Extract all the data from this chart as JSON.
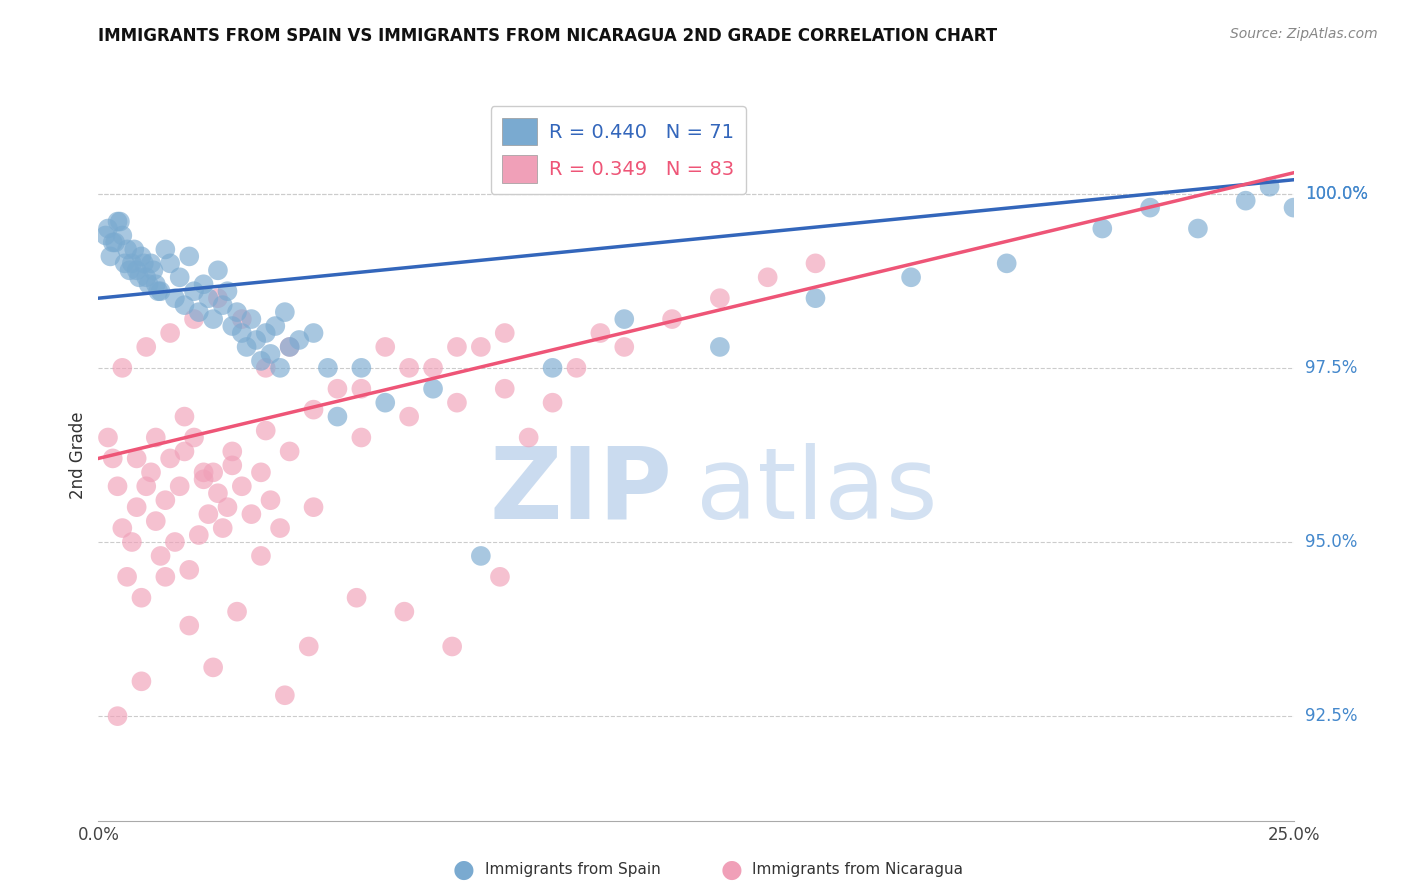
{
  "title": "IMMIGRANTS FROM SPAIN VS IMMIGRANTS FROM NICARAGUA 2ND GRADE CORRELATION CHART",
  "source_text": "Source: ZipAtlas.com",
  "ylabel": "2nd Grade",
  "xlim": [
    0.0,
    25.0
  ],
  "ylim": [
    91.0,
    101.5
  ],
  "x_tick_vals": [
    0,
    5,
    10,
    15,
    20,
    25
  ],
  "x_tick_labels": [
    "0.0%",
    "",
    "",
    "",
    "",
    "25.0%"
  ],
  "y_tick_vals": [
    92.5,
    95.0,
    97.5,
    100.0
  ],
  "y_tick_labels": [
    "92.5%",
    "95.0%",
    "97.5%",
    "100.0%"
  ],
  "r_spain": 0.44,
  "n_spain": 71,
  "r_nicaragua": 0.349,
  "n_nicaragua": 83,
  "spain_color": "#7AAAD0",
  "nicaragua_color": "#F0A0B8",
  "spain_line_color": "#3366BB",
  "nicaragua_line_color": "#EE5577",
  "watermark_zip": "ZIP",
  "watermark_atlas": "atlas",
  "watermark_color": "#C8DCF0",
  "watermark_atlas_color": "#B8C8D8",
  "spain_trend_x0": 0.0,
  "spain_trend_y0": 98.5,
  "spain_trend_x1": 25.0,
  "spain_trend_y1": 100.2,
  "nic_trend_x0": 0.0,
  "nic_trend_y0": 96.2,
  "nic_trend_x1": 25.0,
  "nic_trend_y1": 100.3,
  "spain_x": [
    0.2,
    0.3,
    0.4,
    0.5,
    0.6,
    0.7,
    0.8,
    0.9,
    1.0,
    1.1,
    1.2,
    1.3,
    1.4,
    1.5,
    1.6,
    1.7,
    1.8,
    1.9,
    2.0,
    2.1,
    2.2,
    2.3,
    2.4,
    2.5,
    2.6,
    2.7,
    2.8,
    2.9,
    3.0,
    3.1,
    3.2,
    3.3,
    3.4,
    3.5,
    3.6,
    3.7,
    3.8,
    3.9,
    4.0,
    4.2,
    4.5,
    4.8,
    5.0,
    5.5,
    6.0,
    7.0,
    8.0,
    9.5,
    11.0,
    13.0,
    15.0,
    17.0,
    19.0,
    21.0,
    22.0,
    23.0,
    24.0,
    24.5,
    25.0,
    0.15,
    0.25,
    0.35,
    0.45,
    0.55,
    0.65,
    0.75,
    0.85,
    0.95,
    1.05,
    1.15,
    1.25
  ],
  "spain_y": [
    99.5,
    99.3,
    99.6,
    99.4,
    99.2,
    99.0,
    98.9,
    99.1,
    98.8,
    99.0,
    98.7,
    98.6,
    99.2,
    99.0,
    98.5,
    98.8,
    98.4,
    99.1,
    98.6,
    98.3,
    98.7,
    98.5,
    98.2,
    98.9,
    98.4,
    98.6,
    98.1,
    98.3,
    98.0,
    97.8,
    98.2,
    97.9,
    97.6,
    98.0,
    97.7,
    98.1,
    97.5,
    98.3,
    97.8,
    97.9,
    98.0,
    97.5,
    96.8,
    97.5,
    97.0,
    97.2,
    94.8,
    97.5,
    98.2,
    97.8,
    98.5,
    98.8,
    99.0,
    99.5,
    99.8,
    99.5,
    99.9,
    100.1,
    99.8,
    99.4,
    99.1,
    99.3,
    99.6,
    99.0,
    98.9,
    99.2,
    98.8,
    99.0,
    98.7,
    98.9,
    98.6
  ],
  "nic_x": [
    0.2,
    0.3,
    0.4,
    0.5,
    0.6,
    0.7,
    0.8,
    0.9,
    1.0,
    1.1,
    1.2,
    1.3,
    1.4,
    1.5,
    1.6,
    1.7,
    1.8,
    1.9,
    2.0,
    2.1,
    2.2,
    2.3,
    2.4,
    2.5,
    2.6,
    2.7,
    2.8,
    3.0,
    3.2,
    3.4,
    3.6,
    3.8,
    4.0,
    4.5,
    5.0,
    5.5,
    6.0,
    6.5,
    7.0,
    7.5,
    8.0,
    8.5,
    9.0,
    9.5,
    10.0,
    10.5,
    11.0,
    12.0,
    13.0,
    14.0,
    15.0,
    0.5,
    1.0,
    1.5,
    2.0,
    2.5,
    3.0,
    3.5,
    4.0,
    0.8,
    1.2,
    1.8,
    2.2,
    2.8,
    3.5,
    4.5,
    5.5,
    6.5,
    7.5,
    8.5,
    0.4,
    0.9,
    1.4,
    1.9,
    2.4,
    2.9,
    3.4,
    3.9,
    4.4,
    5.4,
    6.4,
    7.4,
    8.4
  ],
  "nic_y": [
    96.5,
    96.2,
    95.8,
    95.2,
    94.5,
    95.0,
    95.5,
    94.2,
    95.8,
    96.0,
    95.3,
    94.8,
    95.6,
    96.2,
    95.0,
    95.8,
    96.3,
    94.6,
    96.5,
    95.1,
    95.9,
    95.4,
    96.0,
    95.7,
    95.2,
    95.5,
    96.1,
    95.8,
    95.4,
    96.0,
    95.6,
    95.2,
    96.3,
    95.5,
    97.2,
    96.5,
    97.8,
    96.8,
    97.5,
    97.0,
    97.8,
    97.2,
    96.5,
    97.0,
    97.5,
    98.0,
    97.8,
    98.2,
    98.5,
    98.8,
    99.0,
    97.5,
    97.8,
    98.0,
    98.2,
    98.5,
    98.2,
    97.5,
    97.8,
    96.2,
    96.5,
    96.8,
    96.0,
    96.3,
    96.6,
    96.9,
    97.2,
    97.5,
    97.8,
    98.0,
    92.5,
    93.0,
    94.5,
    93.8,
    93.2,
    94.0,
    94.8,
    92.8,
    93.5,
    94.2,
    94.0,
    93.5,
    94.5
  ]
}
